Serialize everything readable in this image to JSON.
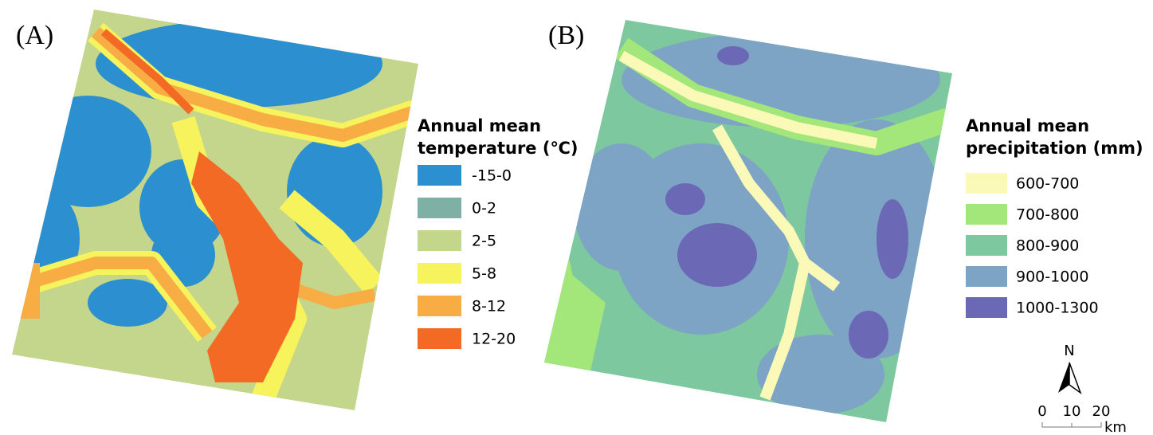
{
  "panels": [
    {
      "label": "(A)",
      "legend": {
        "title": [
          "Annual mean",
          "temperature (℃)"
        ],
        "items": [
          {
            "label": "-15-0",
            "color": "#2c8fcf"
          },
          {
            "label": "0-2",
            "color": "#7fb0a6"
          },
          {
            "label": "2-5",
            "color": "#c3d68c"
          },
          {
            "label": "5-8",
            "color": "#f6f35c"
          },
          {
            "label": "8-12",
            "color": "#f7ad44"
          },
          {
            "label": "12-20",
            "color": "#f26a24"
          }
        ]
      }
    },
    {
      "label": "(B)",
      "legend": {
        "title": [
          "Annual mean",
          "precipitation (mm)"
        ],
        "items": [
          {
            "label": "600-700",
            "color": "#fbf9b7"
          },
          {
            "label": "700-800",
            "color": "#a3e67a"
          },
          {
            "label": "800-900",
            "color": "#7ec8a0"
          },
          {
            "label": "900-1000",
            "color": "#7da3c5"
          },
          {
            "label": "1000-1300",
            "color": "#6b69b5"
          }
        ]
      }
    }
  ],
  "north_arrow": "N",
  "scale_bar": {
    "ticks": [
      "0",
      "10",
      "20"
    ],
    "unit": "km"
  }
}
